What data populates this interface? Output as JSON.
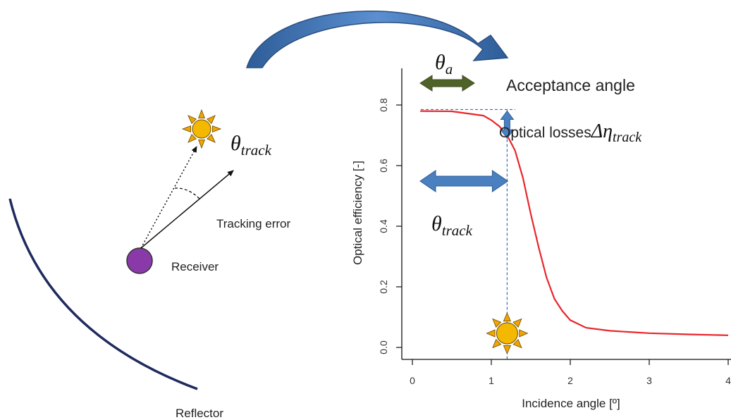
{
  "left_panel": {
    "receiver_label": "Receiver",
    "reflector_label": "Reflector",
    "tracking_error_label": "Tracking error",
    "theta_track_symbol": "θ",
    "theta_track_subscript": "track"
  },
  "annotations": {
    "theta_a_symbol": "θ",
    "theta_a_subscript": "a",
    "acceptance_angle_label": "Acceptance angle",
    "optical_losses_label": "Optical losses",
    "delta_eta_symbol": "Δη",
    "delta_eta_subscript": "track",
    "theta_track_symbol": "θ",
    "theta_track_subscript": "track"
  },
  "colors": {
    "curve": "#e8262b",
    "reflector": "#1f2a5e",
    "receiver": "#8a3aa8",
    "sun_core": "#f5b800",
    "sun_rays": "#f0a500",
    "blue_arrow": "#4a7fc0",
    "green_arrow": "#4f6228",
    "dashed_guides": "#3b6cb3"
  },
  "chart_data": {
    "type": "line",
    "title": "",
    "xlabel": "Incidence angle [º]",
    "ylabel": "Optical efficiency [-]",
    "xlim": [
      0,
      4
    ],
    "ylim": [
      0,
      0.8
    ],
    "x_ticks": [
      "0",
      "1",
      "2",
      "3",
      "4"
    ],
    "y_ticks": [
      "0.0",
      "0.2",
      "0.4",
      "0.6",
      "0.8"
    ],
    "grid": false,
    "series": [
      {
        "name": "",
        "x": [
          0.1,
          0.5,
          0.9,
          1.0,
          1.1,
          1.2,
          1.3,
          1.4,
          1.5,
          1.6,
          1.7,
          1.8,
          1.9,
          2.0,
          2.2,
          2.5,
          3.0,
          3.5,
          4.0
        ],
        "y": [
          0.78,
          0.779,
          0.765,
          0.75,
          0.73,
          0.7,
          0.65,
          0.56,
          0.44,
          0.33,
          0.23,
          0.16,
          0.12,
          0.09,
          0.065,
          0.055,
          0.047,
          0.043,
          0.04
        ]
      }
    ],
    "theta_track_value": 1.2,
    "max_efficiency": 0.785
  }
}
